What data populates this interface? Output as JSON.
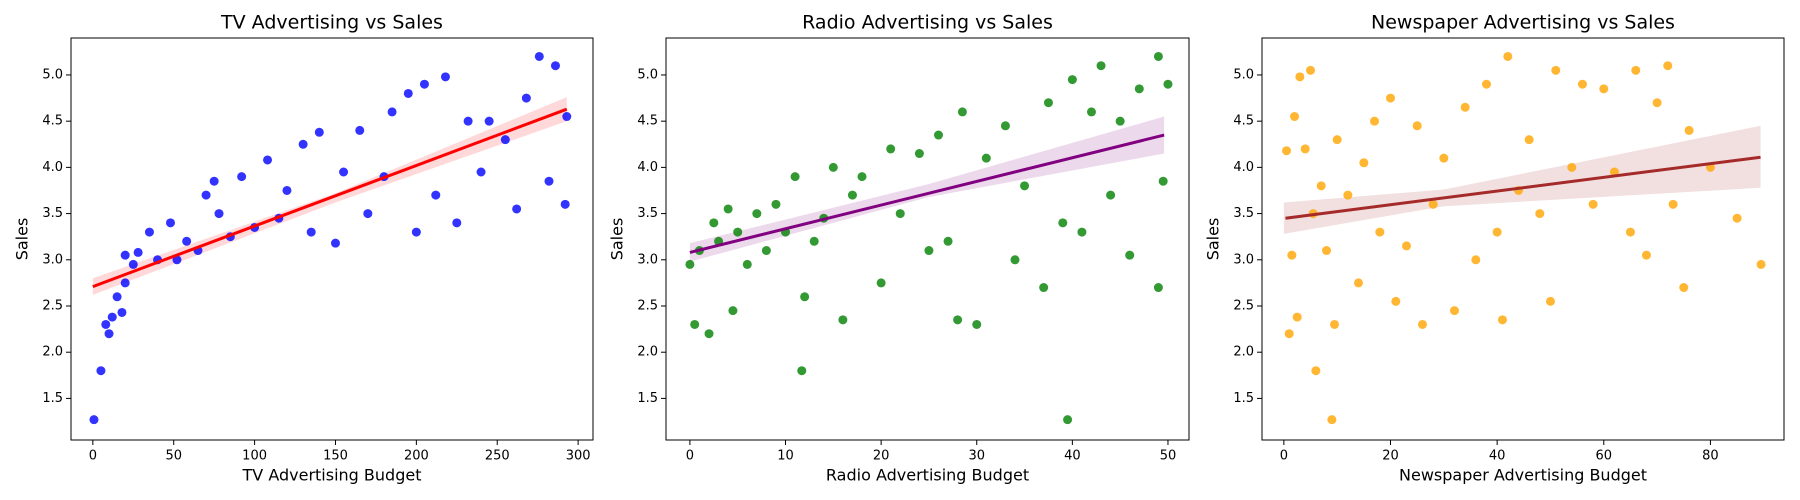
{
  "chart_data": [
    {
      "type": "scatter",
      "title": "TV Advertising vs Sales",
      "x_label": "TV Advertising Budget",
      "y_label": "Sales",
      "color": "#0000ff",
      "line_color": "#ff0000",
      "points": {
        "x": [
          0.7,
          5,
          8,
          10,
          12,
          15,
          18,
          20,
          20,
          25,
          28,
          35,
          40,
          48,
          52,
          58,
          65,
          70,
          75,
          78,
          85,
          92,
          100,
          108,
          115,
          120,
          130,
          135,
          140,
          150,
          155,
          165,
          170,
          180,
          185,
          195,
          200,
          205,
          212,
          218,
          225,
          232,
          240,
          245,
          255,
          262,
          268,
          276,
          282,
          286,
          292,
          293
        ],
        "y": [
          1.27,
          1.8,
          2.3,
          2.2,
          2.38,
          2.6,
          2.43,
          3.05,
          2.75,
          2.95,
          3.08,
          3.3,
          3.0,
          3.4,
          3.0,
          3.2,
          3.1,
          3.7,
          3.85,
          3.5,
          3.25,
          3.9,
          3.35,
          4.08,
          3.45,
          3.75,
          4.25,
          3.3,
          4.38,
          3.18,
          3.95,
          4.4,
          3.5,
          3.9,
          4.6,
          4.8,
          3.3,
          4.9,
          3.7,
          4.98,
          3.4,
          4.5,
          3.95,
          4.5,
          4.3,
          3.55,
          4.75,
          5.2,
          3.85,
          5.1,
          3.6,
          4.55
        ]
      },
      "regression": {
        "x": [
          0,
          293
        ],
        "y": [
          2.71,
          4.63
        ]
      },
      "band": {
        "x": [
          0,
          150,
          293
        ],
        "lower": [
          2.62,
          3.62,
          4.5
        ],
        "upper": [
          2.8,
          3.72,
          4.76
        ]
      },
      "xlim": [
        -13.5,
        309.2
      ],
      "ylim": [
        1.05,
        5.4
      ],
      "xticks": [
        0,
        50,
        100,
        150,
        200,
        250,
        300
      ],
      "yticks": [
        1.5,
        {
          "value": 2,
          "label": "2.0"
        },
        2.5,
        {
          "value": 3,
          "label": "3.0"
        },
        3.5,
        {
          "value": 4,
          "label": "4.0"
        },
        4.5,
        {
          "value": 5,
          "label": "5.0"
        }
      ]
    },
    {
      "type": "scatter",
      "title": "Radio Advertising vs Sales",
      "x_label": "Radio Advertising Budget",
      "y_label": "Sales",
      "color": "#008000",
      "line_color": "#800080",
      "points": {
        "x": [
          0,
          0.5,
          1,
          2,
          2.5,
          3,
          4,
          4.5,
          5,
          6,
          7,
          8,
          9,
          10,
          11,
          11.7,
          12,
          13,
          14,
          15,
          16,
          17,
          18,
          20,
          21,
          22,
          24,
          25,
          26,
          27,
          28,
          28.5,
          30,
          31,
          33,
          34,
          35,
          37,
          37.5,
          39,
          39.5,
          40,
          41,
          42,
          43,
          44,
          45,
          46,
          47,
          49,
          49,
          49.5,
          50
        ],
        "y": [
          2.95,
          2.3,
          3.1,
          2.2,
          3.4,
          3.2,
          3.55,
          2.45,
          3.3,
          2.95,
          3.5,
          3.1,
          3.6,
          3.3,
          3.9,
          1.8,
          2.6,
          3.2,
          3.45,
          4.0,
          2.35,
          3.7,
          3.9,
          2.75,
          4.2,
          3.5,
          4.15,
          3.1,
          4.35,
          3.2,
          2.35,
          4.6,
          2.3,
          4.1,
          4.45,
          3.0,
          3.8,
          2.7,
          4.7,
          3.4,
          1.27,
          4.95,
          3.3,
          4.6,
          5.1,
          3.7,
          4.5,
          3.05,
          4.85,
          5.2,
          2.7,
          3.85,
          4.9
        ]
      },
      "regression": {
        "x": [
          0,
          49.6
        ],
        "y": [
          3.08,
          4.35
        ]
      },
      "band": {
        "x": [
          0,
          25,
          49.6
        ],
        "lower": [
          2.98,
          3.68,
          4.15
        ],
        "upper": [
          3.18,
          3.82,
          4.55
        ]
      },
      "xlim": [
        -2.5,
        52.2
      ],
      "ylim": [
        1.05,
        5.4
      ],
      "xticks": [
        0,
        10,
        20,
        30,
        40,
        50
      ],
      "yticks": [
        1.5,
        {
          "value": 2,
          "label": "2.0"
        },
        2.5,
        {
          "value": 3,
          "label": "3.0"
        },
        3.5,
        {
          "value": 4,
          "label": "4.0"
        },
        4.5,
        {
          "value": 5,
          "label": "5.0"
        }
      ]
    },
    {
      "type": "scatter",
      "title": "Newspaper Advertising vs Sales",
      "x_label": "Newspaper Advertising Budget",
      "y_label": "Sales",
      "color": "#ffa500",
      "line_color": "#a52a2a",
      "points": {
        "x": [
          0.5,
          1,
          1.5,
          2,
          2.5,
          3,
          4,
          5,
          5.5,
          6,
          7,
          8,
          9,
          9.5,
          10,
          12,
          14,
          15,
          17,
          18,
          20,
          21,
          23,
          25,
          26,
          28,
          30,
          32,
          34,
          36,
          38,
          40,
          41,
          42,
          44,
          46,
          48,
          50,
          51,
          54,
          56,
          58,
          60,
          62,
          65,
          66,
          68,
          70,
          72,
          73,
          75,
          76,
          80,
          85,
          89.5
        ],
        "y": [
          4.18,
          2.2,
          3.05,
          4.55,
          2.38,
          4.98,
          4.2,
          5.05,
          3.5,
          1.8,
          3.8,
          3.1,
          1.27,
          2.3,
          4.3,
          3.7,
          2.75,
          4.05,
          4.5,
          3.3,
          4.75,
          2.55,
          3.15,
          4.45,
          2.3,
          3.6,
          4.1,
          2.45,
          4.65,
          3.0,
          4.9,
          3.3,
          2.35,
          5.2,
          3.75,
          4.3,
          3.5,
          2.55,
          5.05,
          4.0,
          4.9,
          3.6,
          4.85,
          3.95,
          3.3,
          5.05,
          3.05,
          4.7,
          5.1,
          3.6,
          2.7,
          4.4,
          4.0,
          3.45,
          2.95
        ]
      },
      "regression": {
        "x": [
          0.3,
          89.4
        ],
        "y": [
          3.45,
          4.11
        ]
      },
      "band": {
        "x": [
          0,
          30,
          89.4
        ],
        "lower": [
          3.28,
          3.58,
          3.78
        ],
        "upper": [
          3.62,
          3.76,
          4.45
        ]
      },
      "xlim": [
        -4.1,
        93.8
      ],
      "ylim": [
        1.05,
        5.4
      ],
      "xticks": [
        0,
        20,
        40,
        60,
        80
      ],
      "yticks": [
        1.5,
        {
          "value": 2,
          "label": "2.0"
        },
        2.5,
        {
          "value": 3,
          "label": "3.0"
        },
        3.5,
        {
          "value": 4,
          "label": "4.0"
        },
        4.5,
        {
          "value": 5,
          "label": "5.0"
        }
      ]
    }
  ]
}
